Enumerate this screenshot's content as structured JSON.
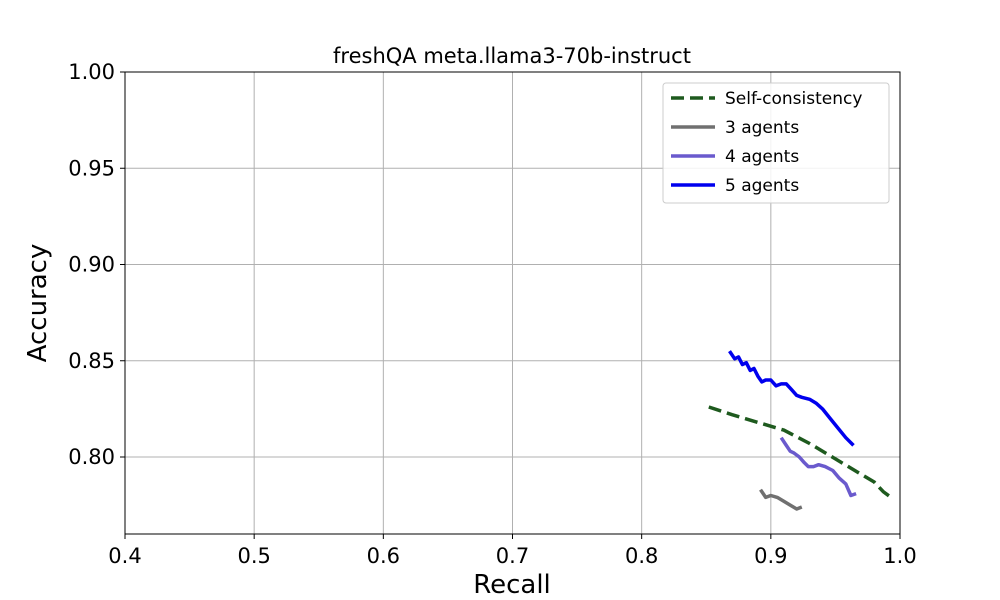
{
  "chart_data": {
    "type": "line",
    "title": "freshQA meta.llama3-70b-instruct",
    "xlabel": "Recall",
    "ylabel": "Accuracy",
    "xlim": [
      0.4,
      1.0
    ],
    "ylim": [
      0.76,
      1.0
    ],
    "xticks": [
      0.4,
      0.5,
      0.6,
      0.7,
      0.8,
      0.9,
      1.0
    ],
    "xtick_labels": [
      "0.4",
      "0.5",
      "0.6",
      "0.7",
      "0.8",
      "0.9",
      "1.0"
    ],
    "yticks": [
      0.8,
      0.85,
      0.9,
      0.95,
      1.0
    ],
    "ytick_labels": [
      "0.80",
      "0.85",
      "0.90",
      "0.95",
      "1.00"
    ],
    "grid": true,
    "legend_position": "top-right",
    "series": [
      {
        "name": "Self-consistency",
        "color": "#1e5a1e",
        "dash": "dashed",
        "width": 3.5,
        "x": [
          0.852,
          0.87,
          0.89,
          0.91,
          0.93,
          0.95,
          0.965,
          0.98,
          0.987,
          0.993
        ],
        "y": [
          0.826,
          0.822,
          0.818,
          0.814,
          0.807,
          0.799,
          0.793,
          0.787,
          0.782,
          0.779
        ]
      },
      {
        "name": "3 agents",
        "color": "#707070",
        "dash": "solid",
        "width": 3.5,
        "x": [
          0.892,
          0.896,
          0.9,
          0.905,
          0.91,
          0.915,
          0.92,
          0.924
        ],
        "y": [
          0.783,
          0.779,
          0.78,
          0.779,
          0.777,
          0.775,
          0.773,
          0.774
        ]
      },
      {
        "name": "4 agents",
        "color": "#6a5acd",
        "dash": "solid",
        "width": 3.5,
        "x": [
          0.908,
          0.912,
          0.915,
          0.918,
          0.922,
          0.926,
          0.929,
          0.933,
          0.937,
          0.942,
          0.948,
          0.953,
          0.958,
          0.962,
          0.966
        ],
        "y": [
          0.81,
          0.806,
          0.803,
          0.802,
          0.8,
          0.797,
          0.795,
          0.795,
          0.796,
          0.795,
          0.793,
          0.789,
          0.786,
          0.78,
          0.781
        ]
      },
      {
        "name": "5 agents",
        "color": "#0000ee",
        "dash": "solid",
        "width": 3.5,
        "x": [
          0.868,
          0.872,
          0.875,
          0.878,
          0.881,
          0.884,
          0.887,
          0.89,
          0.893,
          0.896,
          0.9,
          0.904,
          0.908,
          0.912,
          0.916,
          0.92,
          0.924,
          0.93,
          0.935,
          0.94,
          0.946,
          0.952,
          0.958,
          0.964
        ],
        "y": [
          0.855,
          0.851,
          0.852,
          0.848,
          0.849,
          0.845,
          0.846,
          0.842,
          0.839,
          0.84,
          0.84,
          0.837,
          0.838,
          0.838,
          0.835,
          0.832,
          0.831,
          0.83,
          0.828,
          0.825,
          0.82,
          0.815,
          0.81,
          0.806
        ]
      }
    ]
  }
}
